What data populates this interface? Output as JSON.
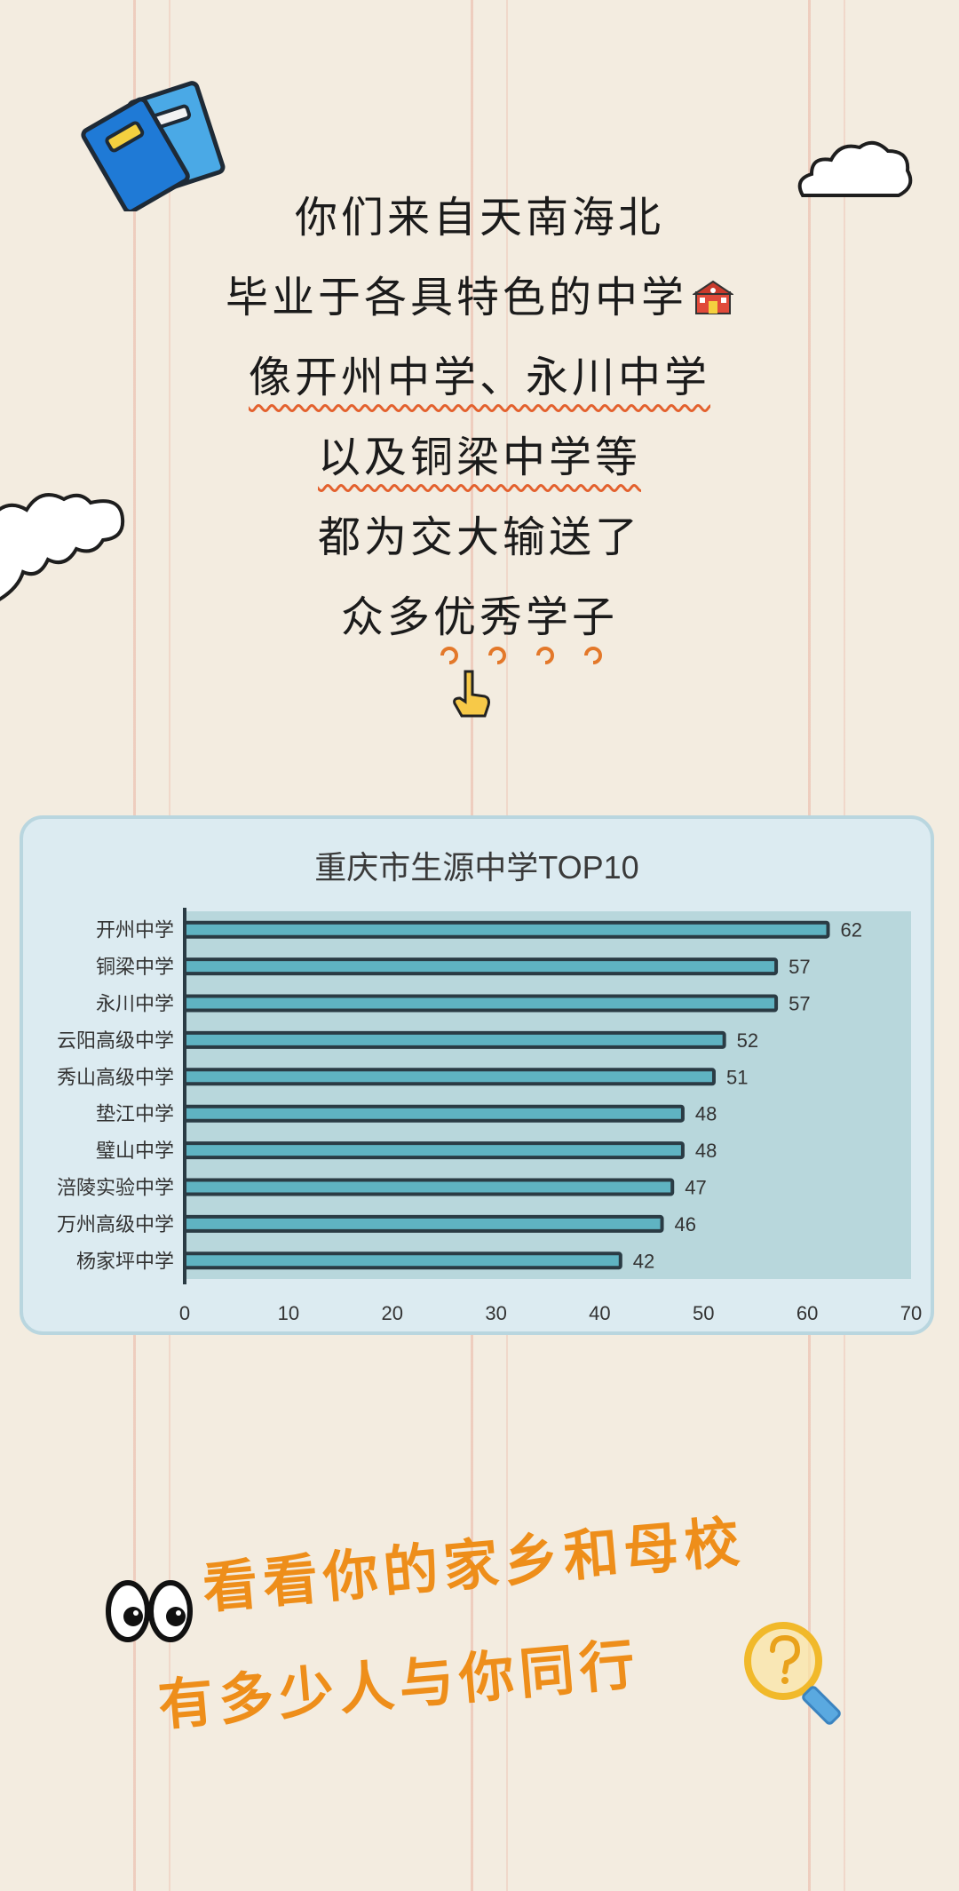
{
  "poem": {
    "lines": [
      "你们来自天南海北",
      "毕业于各具特色的中学",
      "像开州中学、永川中学",
      "以及铜梁中学等",
      "都为交大输送了",
      "众多优秀学子"
    ]
  },
  "chart_data": {
    "type": "bar",
    "orientation": "horizontal",
    "title": "重庆市生源中学TOP10",
    "categories": [
      "开州中学",
      "铜梁中学",
      "永川中学",
      "云阳高级中学",
      "秀山高级中学",
      "垫江中学",
      "璧山中学",
      "涪陵实验中学",
      "万州高级中学",
      "杨家坪中学"
    ],
    "values": [
      62,
      57,
      57,
      52,
      51,
      48,
      48,
      47,
      46,
      42
    ],
    "xlim": [
      0,
      70
    ],
    "xticks": [
      0,
      10,
      20,
      30,
      40,
      50,
      60,
      70
    ],
    "bar_color": "#5fb3c2",
    "bar_outline": "#2a3b44",
    "plot_bg": "#b8d7dc",
    "data_labels": true,
    "grid": false
  },
  "bottom": {
    "line1": "看看你的家乡和母校",
    "line2": "有多少人与你同行"
  },
  "icons": [
    "books-icon",
    "cloud-icon",
    "school-icon",
    "pointing-hand-icon",
    "swirl-icon",
    "eyes-icon",
    "magnifier-question-icon"
  ],
  "colors": {
    "background": "#f3ece0",
    "accent_orange": "#ee8e1a",
    "wavy_underline": "#e3612e",
    "chart_card": "#dcebf1"
  }
}
